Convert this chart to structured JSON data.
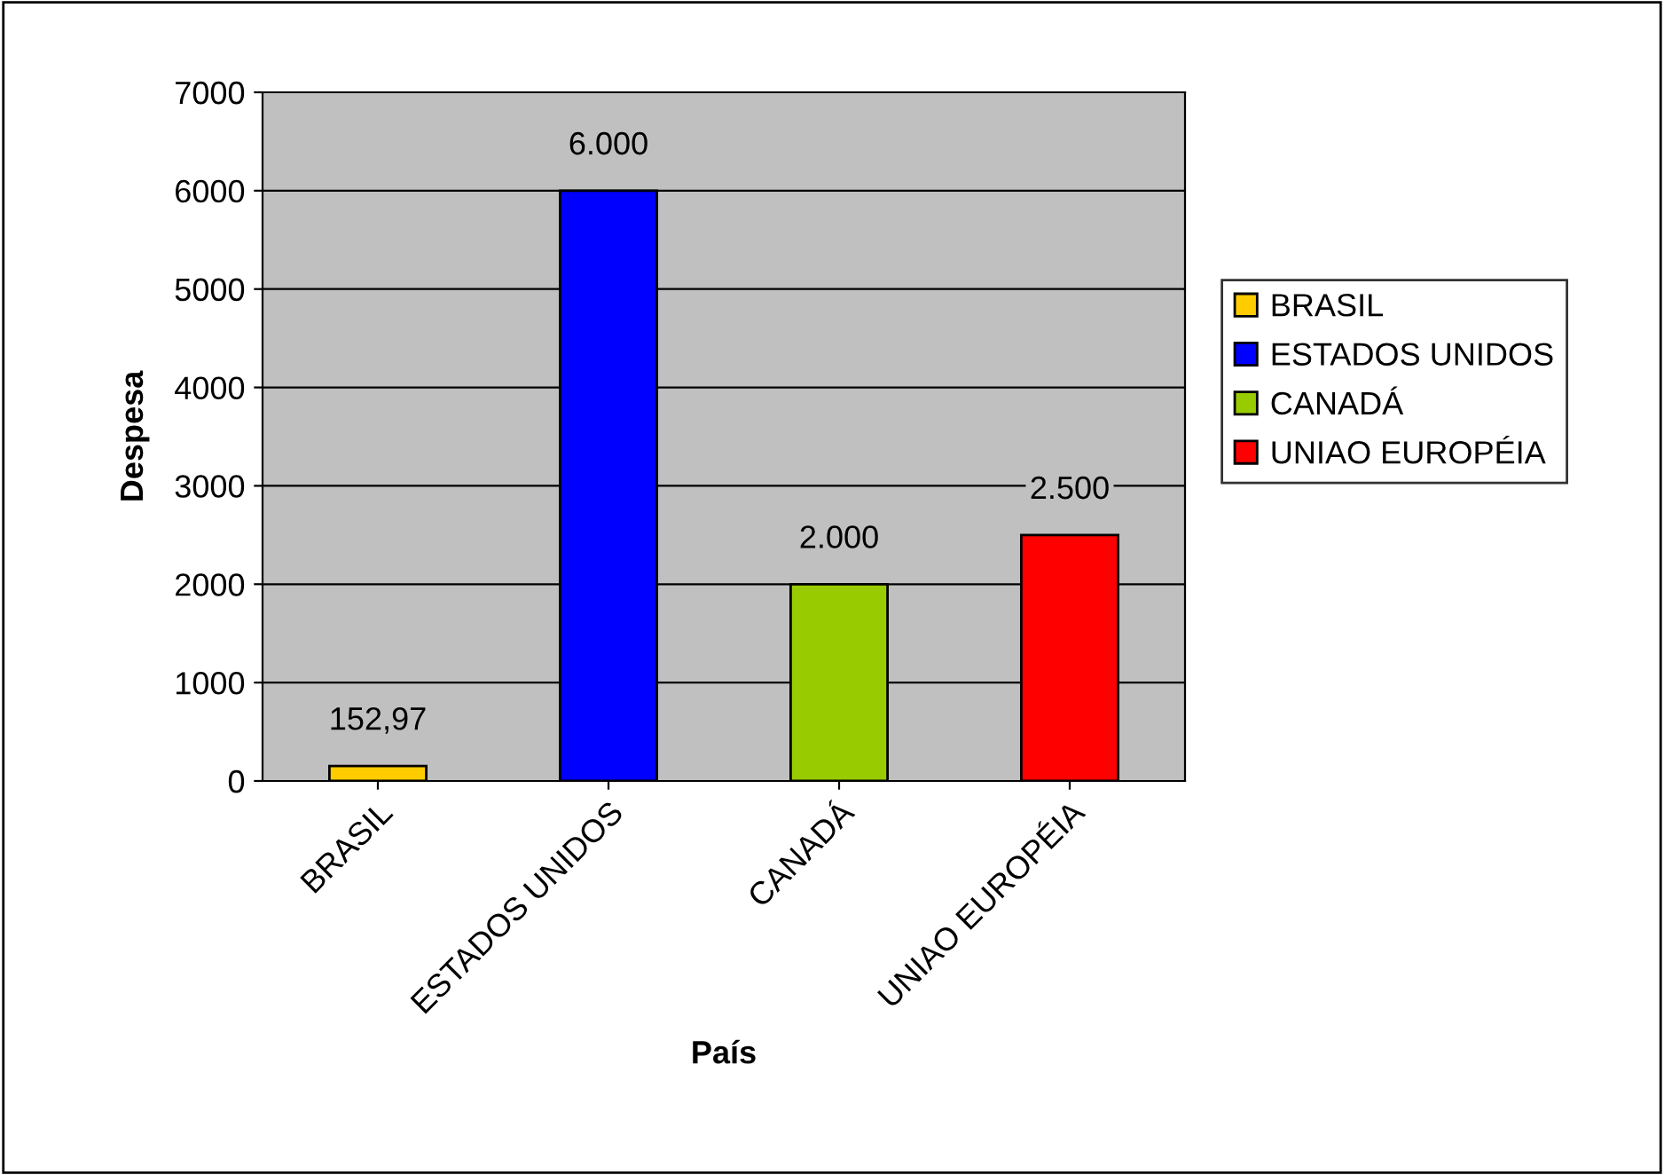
{
  "chart_data": {
    "type": "bar",
    "xlabel": "País",
    "ylabel": "Despesa",
    "categories": [
      "BRASIL",
      "ESTADOS UNIDOS",
      "CANADÁ",
      "UNIAO EUROPÉIA"
    ],
    "series": [
      {
        "name": "BRASIL",
        "color": "#ffcc00",
        "values": [
          152.97,
          null,
          null,
          null
        ],
        "value_labels": [
          "152,97",
          null,
          null,
          null
        ]
      },
      {
        "name": "ESTADOS UNIDOS",
        "color": "#0000ff",
        "values": [
          null,
          6000,
          null,
          null
        ],
        "value_labels": [
          null,
          "6.000",
          null,
          null
        ]
      },
      {
        "name": "CANADÁ",
        "color": "#99cc00",
        "values": [
          null,
          null,
          2000,
          null
        ],
        "value_labels": [
          null,
          null,
          "2.000",
          null
        ]
      },
      {
        "name": "UNIAO EUROPÉIA",
        "color": "#ff0000",
        "values": [
          null,
          null,
          null,
          2500
        ],
        "value_labels": [
          null,
          null,
          null,
          "2.500"
        ]
      }
    ],
    "ylim": [
      0,
      7000
    ],
    "yticks": [
      0,
      1000,
      2000,
      3000,
      4000,
      5000,
      6000,
      7000
    ],
    "grid": "y",
    "legend": "right"
  }
}
